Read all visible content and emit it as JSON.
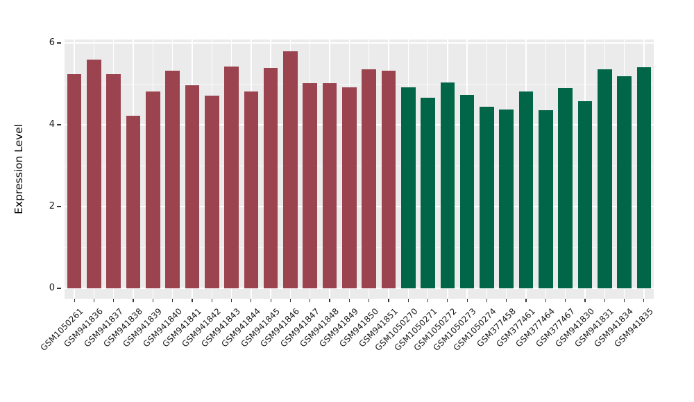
{
  "style": {
    "figure_bg": "#FFFFFF",
    "panel_bg": "#EBEBEB",
    "grid_color": "#FFFFFF",
    "axis_tick_color": "#333333",
    "axis_text_color": "#1A1A1A",
    "axis_title_color": "#000000",
    "bar_color_group1": "#9B4450",
    "bar_color_group2": "#006647"
  },
  "chart_data": {
    "type": "bar",
    "title": "",
    "xlabel": "",
    "ylabel": "Expression Level",
    "ylim": [
      0,
      6.08
    ],
    "panel_ylim": [
      -0.25,
      6.08
    ],
    "yticks": [
      0,
      2,
      4,
      6
    ],
    "grid": "on",
    "legend": "none",
    "x_tick_rotation_deg": 45,
    "categories": [
      "GSM1050261",
      "GSM941836",
      "GSM941837",
      "GSM941838",
      "GSM941839",
      "GSM941840",
      "GSM941841",
      "GSM941842",
      "GSM941843",
      "GSM941844",
      "GSM941845",
      "GSM941846",
      "GSM941847",
      "GSM941848",
      "GSM941849",
      "GSM941850",
      "GSM941851",
      "GSM1050270",
      "GSM1050271",
      "GSM1050272",
      "GSM1050273",
      "GSM1050274",
      "GSM377458",
      "GSM377461",
      "GSM377464",
      "GSM377467",
      "GSM941830",
      "GSM941831",
      "GSM941834",
      "GSM941835"
    ],
    "values": [
      5.24,
      5.59,
      5.24,
      4.22,
      4.81,
      5.33,
      4.97,
      4.72,
      5.42,
      4.81,
      5.39,
      5.8,
      5.02,
      5.02,
      4.92,
      5.36,
      5.33,
      4.92,
      4.66,
      5.03,
      4.73,
      4.44,
      4.37,
      4.82,
      4.36,
      4.89,
      4.58,
      5.36,
      5.18,
      5.41
    ],
    "groups": [
      "group1",
      "group1",
      "group1",
      "group1",
      "group1",
      "group1",
      "group1",
      "group1",
      "group1",
      "group1",
      "group1",
      "group1",
      "group1",
      "group1",
      "group1",
      "group1",
      "group1",
      "group2",
      "group2",
      "group2",
      "group2",
      "group2",
      "group2",
      "group2",
      "group2",
      "group2",
      "group2",
      "group2",
      "group2",
      "group2"
    ],
    "group_colors": {
      "group1": "#9B4450",
      "group2": "#006647"
    }
  }
}
